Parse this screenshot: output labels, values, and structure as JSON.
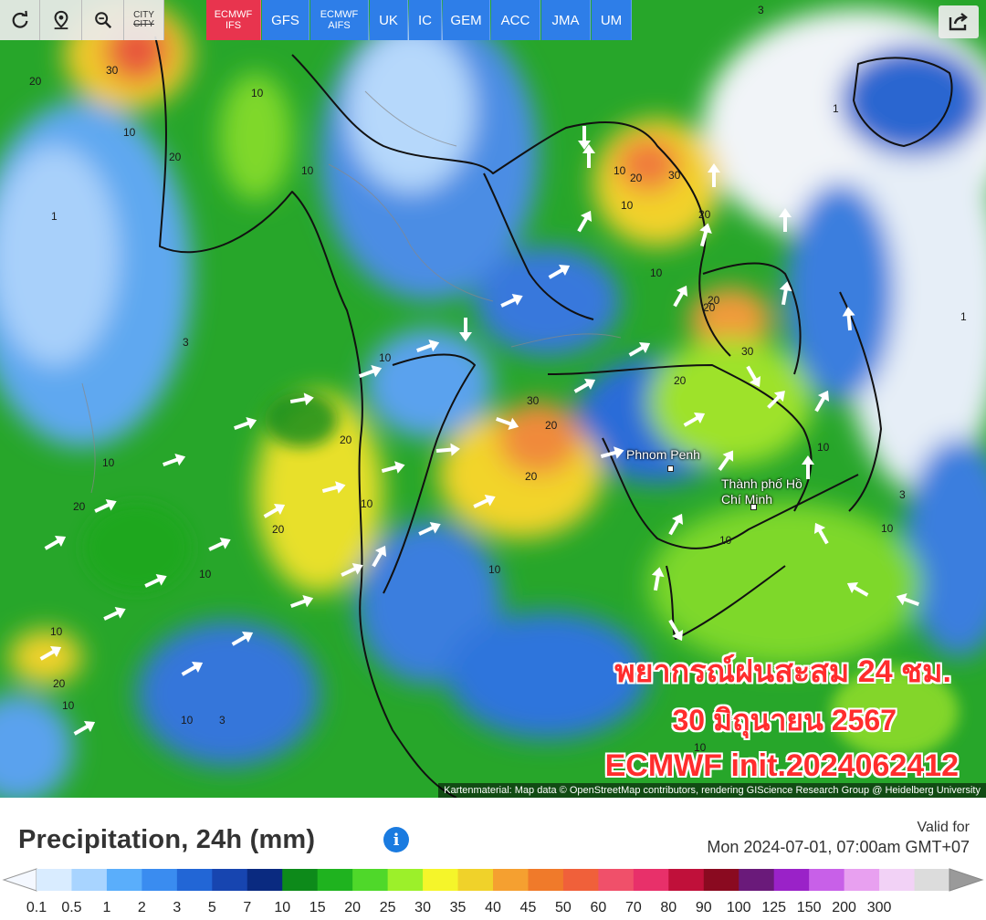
{
  "toolbar": {
    "icons": [
      "refresh-icon",
      "location-pin-icon",
      "zoom-out-icon"
    ],
    "city_toggle": "CITY"
  },
  "models": [
    {
      "label": "ECMWF IFS",
      "active": true
    },
    {
      "label": "GFS",
      "active": false
    },
    {
      "label": "ECMWF AIFS",
      "active": false
    },
    {
      "label": "UK",
      "active": false
    },
    {
      "label": "IC",
      "active": false
    },
    {
      "label": "GEM",
      "active": false
    },
    {
      "label": "ACC",
      "active": false
    },
    {
      "label": "JMA",
      "active": false
    },
    {
      "label": "UM",
      "active": false
    }
  ],
  "map": {
    "cities": [
      {
        "name": "Phnom Penh"
      },
      {
        "name": "Thành phố Hồ Chí Minh"
      }
    ],
    "value_labels": [
      "30",
      "20",
      "10",
      "1",
      "3",
      "10",
      "20",
      "10",
      "20",
      "30",
      "10",
      "20",
      "10",
      "20",
      "30",
      "10",
      "20",
      "20",
      "10",
      "10",
      "20",
      "30",
      "10",
      "20",
      "10",
      "10",
      "20",
      "10",
      "20",
      "10",
      "10",
      "3",
      "1",
      "1",
      "3",
      "10",
      "10",
      "20",
      "20",
      "10",
      "10",
      "3"
    ],
    "overlay": {
      "line1": "พยากรณ์ฝนสะสม 24 ชม.",
      "line2": "30 มิถุนายน 2567",
      "line3": "ECMWF init.2024062412"
    },
    "attribution": "Kartenmaterial: Map data © OpenStreetMap contributors, rendering GIScience Research Group @ Heidelberg University"
  },
  "legend": {
    "title": "Precipitation, 24h (mm)",
    "info": "i",
    "valid_label": "Valid for",
    "valid_date": "Mon 2024-07-01, 07:00am GMT+07",
    "ticks": [
      "0.1",
      "0.5",
      "1",
      "2",
      "3",
      "5",
      "7",
      "10",
      "15",
      "20",
      "25",
      "30",
      "35",
      "40",
      "45",
      "50",
      "60",
      "70",
      "80",
      "90",
      "100",
      "125",
      "150",
      "200",
      "300"
    ],
    "colors": [
      "#d9ecff",
      "#a8d4ff",
      "#5aaefb",
      "#3a8cf0",
      "#2266d6",
      "#1745b0",
      "#0a2a80",
      "#0d8a1a",
      "#1fb31f",
      "#4fd82a",
      "#9cf02a",
      "#f5f52a",
      "#f0d22a",
      "#f5a030",
      "#f07a2a",
      "#f0603a",
      "#f0506a",
      "#e8306a",
      "#c0103a",
      "#8a0a20",
      "#6a1a7a",
      "#9a22c8",
      "#c860e8",
      "#e8a0f0",
      "#f2d2f6",
      "#dcdcdc"
    ]
  }
}
